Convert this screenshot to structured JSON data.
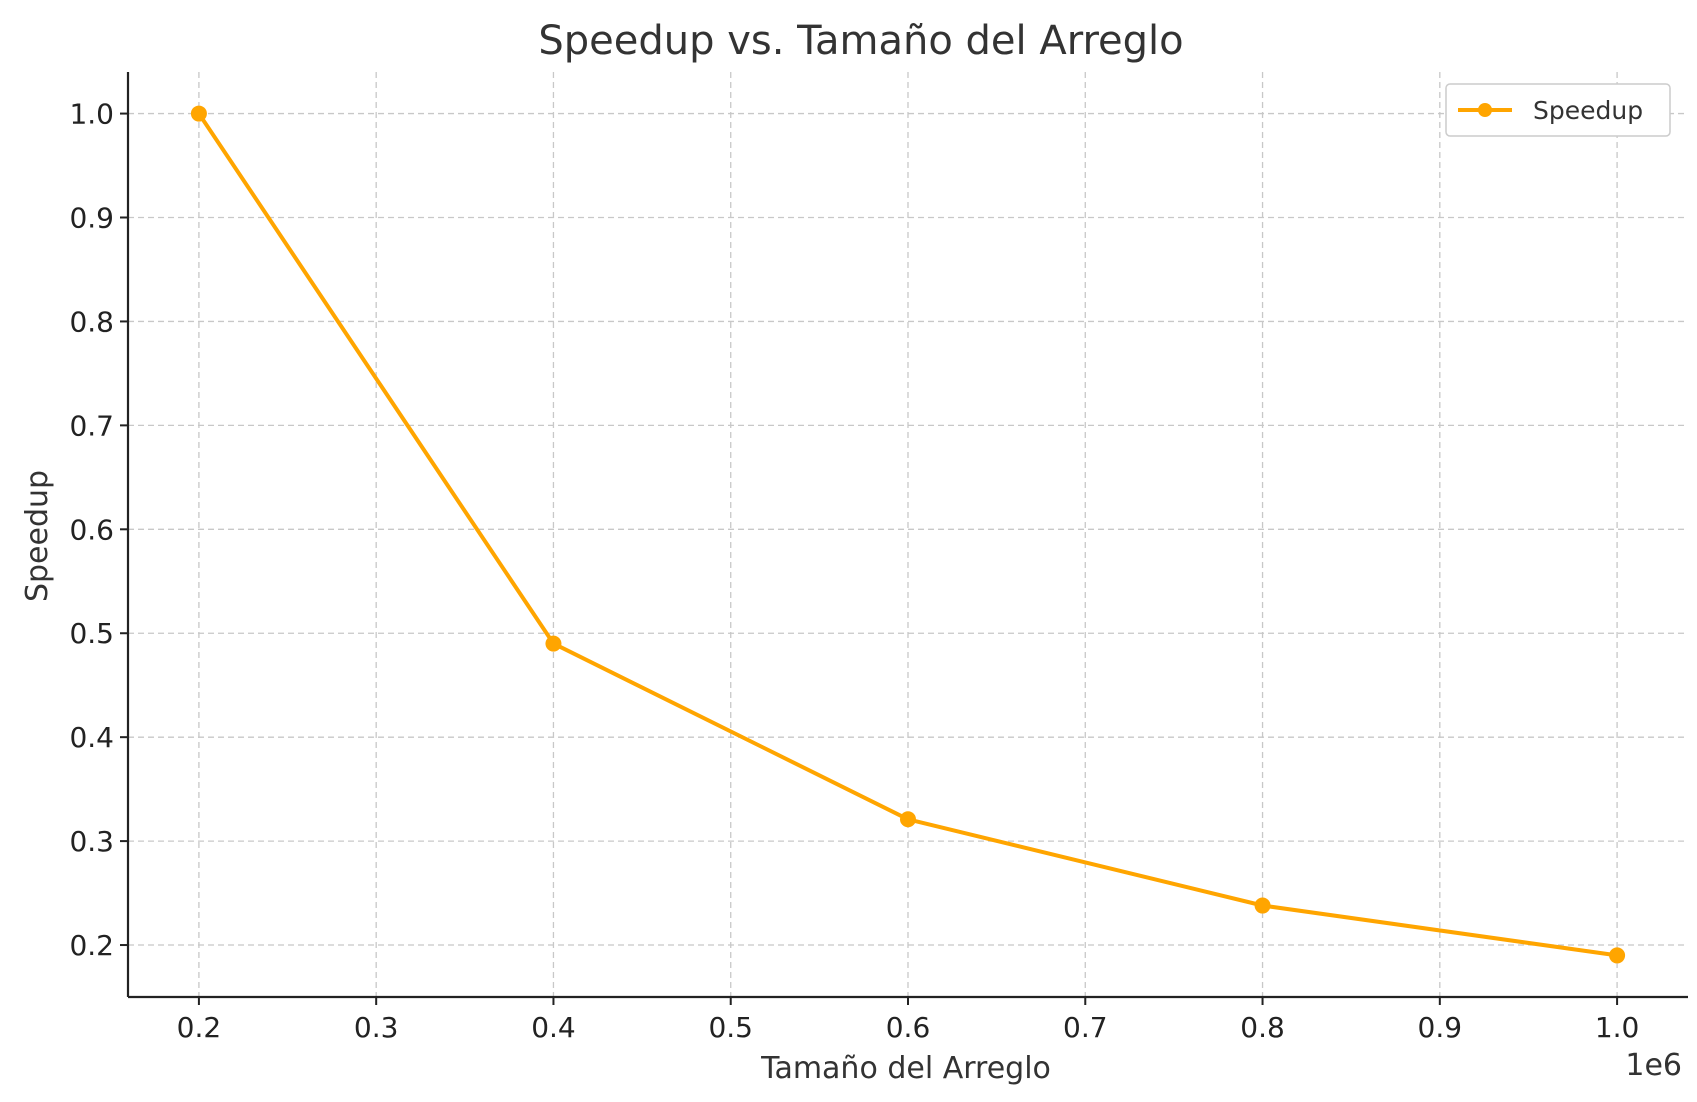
{
  "chart_data": {
    "type": "line",
    "title": "Speedup vs. Tamaño del Arreglo",
    "xlabel": "Tamaño del Arreglo",
    "ylabel": "Speedup",
    "x_offset_label": "1e6",
    "x": [
      0.2,
      0.4,
      0.6,
      0.8,
      1.0
    ],
    "series": [
      {
        "name": "Speedup",
        "color": "#FFA500",
        "values": [
          1.0,
          0.49,
          0.321,
          0.238,
          0.19
        ]
      }
    ],
    "xlim": [
      0.16,
      1.04
    ],
    "ylim": [
      0.15,
      1.04
    ],
    "x_ticks": [
      0.2,
      0.3,
      0.4,
      0.5,
      0.6,
      0.7,
      0.8,
      0.9,
      1.0
    ],
    "x_tick_labels": [
      "0.2",
      "0.3",
      "0.4",
      "0.5",
      "0.6",
      "0.7",
      "0.8",
      "0.9",
      "1.0"
    ],
    "y_ticks": [
      0.2,
      0.3,
      0.4,
      0.5,
      0.6,
      0.7,
      0.8,
      0.9,
      1.0
    ],
    "y_tick_labels": [
      "0.2",
      "0.3",
      "0.4",
      "0.5",
      "0.6",
      "0.7",
      "0.8",
      "0.9",
      "1.0"
    ],
    "grid": true,
    "legend_position": "top-right"
  }
}
